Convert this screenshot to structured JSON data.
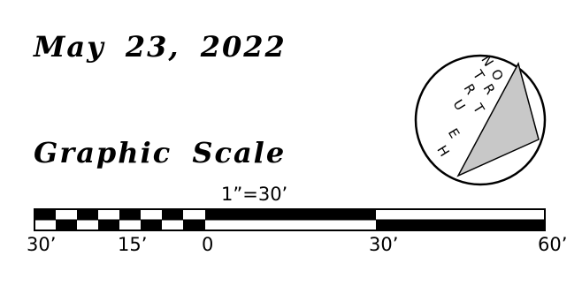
{
  "date": "May 23, 2022",
  "scale_title": "Graphic Scale",
  "scale_ratio": "1”=30’",
  "tick_labels": {
    "left_30": "30’",
    "left_15": "15’",
    "zero": "0",
    "right_30": "30’",
    "right_60": "60’"
  },
  "north_arrow": {
    "label": "TRUE NORTH",
    "letters": [
      "N",
      "T",
      "O",
      "R",
      "R",
      "U",
      "T",
      "E",
      "H"
    ],
    "icon": "north-arrow-icon"
  },
  "colors": {
    "ink": "#000000",
    "paper": "#ffffff",
    "arrow_fill": "#c8c8c8"
  }
}
